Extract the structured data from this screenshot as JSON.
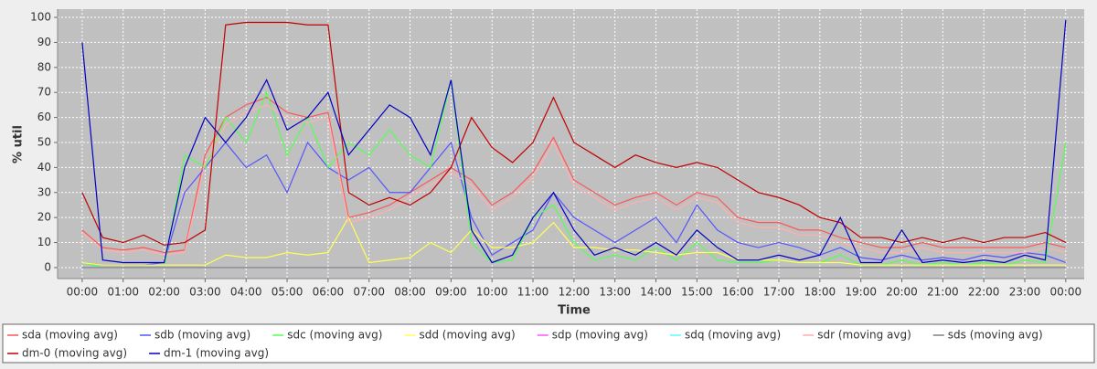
{
  "chart_data": {
    "type": "line",
    "xlabel": "Time",
    "ylabel": "% util",
    "x": [
      0,
      0.5,
      1,
      1.5,
      2,
      2.5,
      3,
      3.5,
      4,
      4.5,
      5,
      5.5,
      6,
      6.5,
      7,
      7.5,
      8,
      8.5,
      9,
      9.5,
      10,
      10.5,
      11,
      11.5,
      12,
      12.5,
      13,
      13.5,
      14,
      14.5,
      15,
      15.5,
      16,
      16.5,
      17,
      17.5,
      18,
      18.5,
      19,
      19.5,
      20,
      20.5,
      21,
      21.5,
      22,
      22.5,
      23,
      23.5,
      24
    ],
    "xlim": [
      -0.6,
      24.45
    ],
    "xticks": [
      {
        "value": 0,
        "label": "00:00"
      },
      {
        "value": 1,
        "label": "01:00"
      },
      {
        "value": 2,
        "label": "02:00"
      },
      {
        "value": 3,
        "label": "03:00"
      },
      {
        "value": 4,
        "label": "04:00"
      },
      {
        "value": 5,
        "label": "05:00"
      },
      {
        "value": 6,
        "label": "06:00"
      },
      {
        "value": 7,
        "label": "07:00"
      },
      {
        "value": 8,
        "label": "08:00"
      },
      {
        "value": 9,
        "label": "09:00"
      },
      {
        "value": 10,
        "label": "10:00"
      },
      {
        "value": 11,
        "label": "11:00"
      },
      {
        "value": 12,
        "label": "12:00"
      },
      {
        "value": 13,
        "label": "13:00"
      },
      {
        "value": 14,
        "label": "14:00"
      },
      {
        "value": 15,
        "label": "15:00"
      },
      {
        "value": 16,
        "label": "16:00"
      },
      {
        "value": 17,
        "label": "17:00"
      },
      {
        "value": 18,
        "label": "18:00"
      },
      {
        "value": 19,
        "label": "19:00"
      },
      {
        "value": 20,
        "label": "20:00"
      },
      {
        "value": 21,
        "label": "21:00"
      },
      {
        "value": 22,
        "label": "22:00"
      },
      {
        "value": 23,
        "label": "23:00"
      },
      {
        "value": 24,
        "label": "00:00"
      }
    ],
    "ylim": [
      -4.4,
      103.3
    ],
    "yticks": [
      0,
      10,
      20,
      30,
      40,
      50,
      60,
      70,
      80,
      90,
      100
    ],
    "grid": true,
    "series": [
      {
        "name": "sda (moving avg)",
        "color": "#ff5555",
        "values": [
          15,
          8,
          7,
          8,
          6,
          7,
          45,
          60,
          65,
          68,
          62,
          60,
          62,
          20,
          22,
          25,
          30,
          35,
          40,
          35,
          25,
          30,
          38,
          52,
          35,
          30,
          25,
          28,
          30,
          25,
          30,
          28,
          20,
          18,
          18,
          15,
          15,
          12,
          10,
          8,
          8,
          10,
          8,
          8,
          8,
          8,
          8,
          10,
          8
        ]
      },
      {
        "name": "sdb (moving avg)",
        "color": "#5555ff",
        "values": [
          2,
          1,
          1,
          1,
          2,
          30,
          40,
          50,
          40,
          45,
          30,
          50,
          40,
          35,
          40,
          30,
          30,
          40,
          50,
          20,
          5,
          10,
          15,
          30,
          20,
          15,
          10,
          15,
          20,
          10,
          25,
          15,
          10,
          8,
          10,
          8,
          5,
          8,
          4,
          3,
          5,
          3,
          4,
          3,
          5,
          4,
          6,
          5,
          2
        ]
      },
      {
        "name": "sdc (moving avg)",
        "color": "#55ff55",
        "values": [
          2,
          0,
          0,
          0,
          0,
          45,
          40,
          60,
          50,
          70,
          45,
          60,
          40,
          50,
          45,
          55,
          45,
          40,
          75,
          10,
          2,
          3,
          20,
          25,
          10,
          3,
          5,
          3,
          8,
          3,
          10,
          3,
          2,
          2,
          3,
          2,
          2,
          5,
          1,
          1,
          3,
          1,
          2,
          1,
          2,
          1,
          3,
          2,
          50
        ]
      },
      {
        "name": "sdd (moving avg)",
        "color": "#ffff55",
        "values": [
          2,
          1,
          1,
          1,
          1,
          1,
          1,
          5,
          4,
          4,
          6,
          5,
          6,
          20,
          2,
          3,
          4,
          10,
          6,
          15,
          8,
          8,
          10,
          18,
          8,
          8,
          7,
          7,
          6,
          5,
          6,
          6,
          3,
          3,
          3,
          2,
          2,
          2,
          1,
          1,
          1,
          1,
          1,
          1,
          1,
          1,
          1,
          1,
          1
        ]
      },
      {
        "name": "sdp (moving avg)",
        "color": "#ff55ff",
        "values": [
          0,
          0,
          0,
          0,
          0,
          0,
          0,
          0,
          0,
          0,
          0,
          0,
          0,
          0,
          0,
          0,
          0,
          0,
          0,
          0,
          0,
          0,
          0,
          0,
          0,
          0,
          0,
          0,
          0,
          0,
          0,
          0,
          0,
          0,
          0,
          0,
          0,
          0,
          0,
          0,
          0,
          0,
          0,
          0,
          0,
          0,
          0,
          0,
          0
        ]
      },
      {
        "name": "sdq (moving avg)",
        "color": "#55ffff",
        "values": [
          0,
          0,
          0,
          0,
          0,
          0,
          0,
          0,
          0,
          0,
          0,
          0,
          0,
          0,
          0,
          0,
          0,
          0,
          0,
          0,
          0,
          0,
          0,
          0,
          0,
          0,
          0,
          0,
          0,
          0,
          0,
          0,
          0,
          0,
          0,
          0,
          0,
          0,
          0,
          0,
          0,
          0,
          0,
          0,
          0,
          0,
          0,
          0,
          0
        ]
      },
      {
        "name": "sdr (moving avg)",
        "color": "#ffafaf",
        "values": [
          14,
          7,
          6,
          7,
          5,
          6,
          42,
          57,
          62,
          65,
          60,
          58,
          60,
          18,
          20,
          23,
          28,
          33,
          38,
          33,
          23,
          28,
          36,
          50,
          33,
          28,
          23,
          26,
          28,
          23,
          28,
          26,
          18,
          16,
          16,
          13,
          13,
          10,
          8,
          6,
          6,
          8,
          6,
          6,
          6,
          6,
          6,
          8,
          6
        ]
      },
      {
        "name": "sds (moving avg)",
        "color": "#808080",
        "values": [
          0,
          0,
          0,
          0,
          0,
          0,
          0,
          0,
          0,
          0,
          0,
          0,
          0,
          0,
          0,
          0,
          0,
          0,
          0,
          0,
          0,
          0,
          0,
          0,
          0,
          0,
          0,
          0,
          0,
          0,
          0,
          0,
          0,
          0,
          0,
          0,
          0,
          0,
          0,
          0,
          0,
          0,
          0,
          0,
          0,
          0,
          0,
          0,
          0
        ]
      },
      {
        "name": "dm-0 (moving avg)",
        "color": "#c00000",
        "values": [
          30,
          12,
          10,
          13,
          9,
          10,
          15,
          97,
          98,
          98,
          98,
          97,
          97,
          30,
          25,
          28,
          25,
          30,
          40,
          60,
          48,
          42,
          50,
          68,
          50,
          45,
          40,
          45,
          42,
          40,
          42,
          40,
          35,
          30,
          28,
          25,
          20,
          18,
          12,
          12,
          10,
          12,
          10,
          12,
          10,
          12,
          12,
          14,
          10
        ]
      },
      {
        "name": "dm-1 (moving avg)",
        "color": "#0000c0",
        "values": [
          90,
          3,
          2,
          2,
          2,
          40,
          60,
          50,
          60,
          75,
          55,
          60,
          70,
          45,
          55,
          65,
          60,
          45,
          75,
          15,
          2,
          5,
          20,
          30,
          15,
          5,
          8,
          5,
          10,
          5,
          15,
          8,
          3,
          3,
          5,
          3,
          5,
          20,
          2,
          2,
          15,
          2,
          3,
          2,
          3,
          2,
          5,
          3,
          99
        ]
      }
    ]
  }
}
